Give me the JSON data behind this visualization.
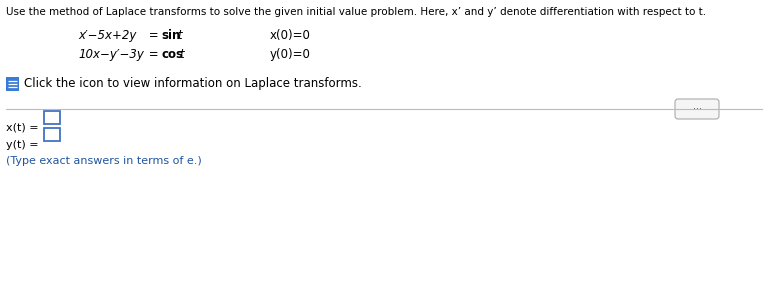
{
  "bg_color": "#ffffff",
  "text_color": "#000000",
  "blue_text_color": "#2155a0",
  "header_text": "Use the method of Laplace transforms to solve the given initial value problem. Here, x’ and y’ denote differentiation with respect to t.",
  "eq1_normal": "x′−5x+2y",
  "eq1_eq": " = ",
  "eq1_bold": "sin",
  "eq1_t": "t",
  "eq1_ic": "x(0)=0",
  "eq2_normal": "10x−y′−3y",
  "eq2_eq": " = ",
  "eq2_bold": "cos",
  "eq2_t": "t",
  "eq2_ic": "y(0)=0",
  "click_text": "Click the icon to view information on Laplace transforms.",
  "xt_label": "x(t) =",
  "yt_label": "y(t) =",
  "footer_text": "(Type exact answers in terms of e.)",
  "dots_text": "···",
  "font_size_header": 7.5,
  "font_size_eq": 8.5,
  "font_size_click": 8.5,
  "font_size_answer": 8.0,
  "font_size_footer": 8.0,
  "icon_color": "#3a7bd5",
  "box_edge_color": "#4472c4"
}
